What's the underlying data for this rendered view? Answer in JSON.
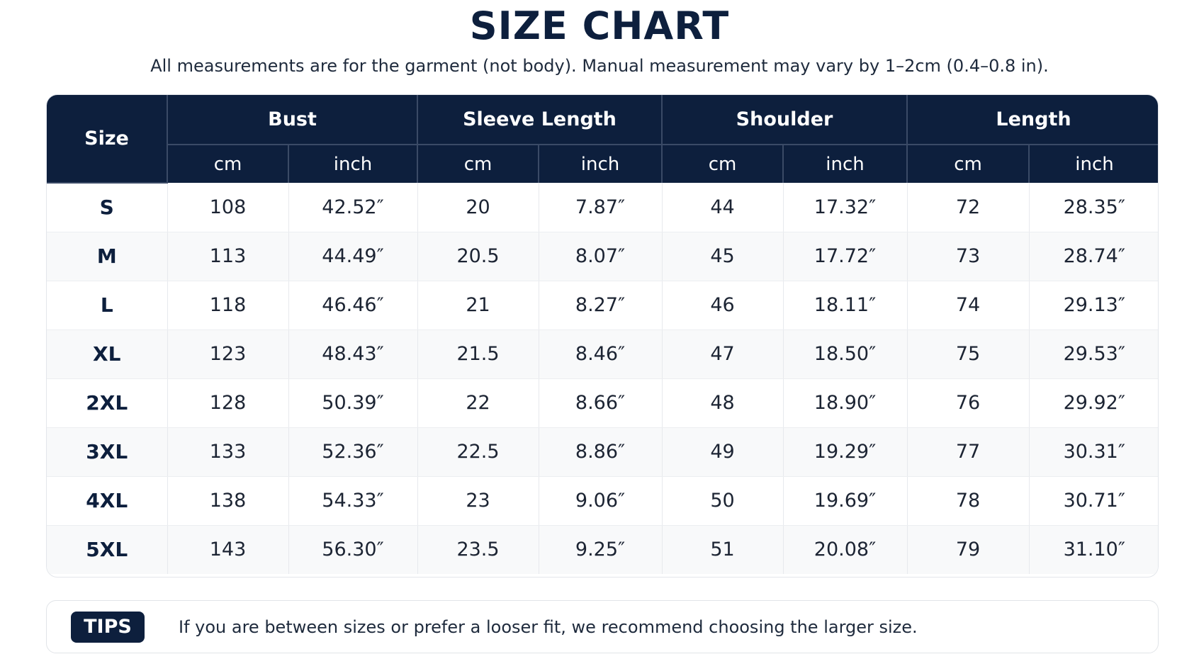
{
  "title": "SIZE CHART",
  "subtitle": "All measurements are for the garment (not body). Manual measurement may vary by 1–2cm (0.4–0.8 in).",
  "table": {
    "size_header": "Size",
    "groups": [
      "Bust",
      "Sleeve Length",
      "Shoulder",
      "Length"
    ],
    "unit_cm": "cm",
    "unit_inch": "inch",
    "rows": [
      {
        "size": "S",
        "cells": [
          "108",
          "42.52″",
          "20",
          "7.87″",
          "44",
          "17.32″",
          "72",
          "28.35″"
        ]
      },
      {
        "size": "M",
        "cells": [
          "113",
          "44.49″",
          "20.5",
          "8.07″",
          "45",
          "17.72″",
          "73",
          "28.74″"
        ]
      },
      {
        "size": "L",
        "cells": [
          "118",
          "46.46″",
          "21",
          "8.27″",
          "46",
          "18.11″",
          "74",
          "29.13″"
        ]
      },
      {
        "size": "XL",
        "cells": [
          "123",
          "48.43″",
          "21.5",
          "8.46″",
          "47",
          "18.50″",
          "75",
          "29.53″"
        ]
      },
      {
        "size": "2XL",
        "cells": [
          "128",
          "50.39″",
          "22",
          "8.66″",
          "48",
          "18.90″",
          "76",
          "29.92″"
        ]
      },
      {
        "size": "3XL",
        "cells": [
          "133",
          "52.36″",
          "22.5",
          "8.86″",
          "49",
          "19.29″",
          "77",
          "30.31″"
        ]
      },
      {
        "size": "4XL",
        "cells": [
          "138",
          "54.33″",
          "23",
          "9.06″",
          "50",
          "19.69″",
          "78",
          "30.71″"
        ]
      },
      {
        "size": "5XL",
        "cells": [
          "143",
          "56.30″",
          "23.5",
          "9.25″",
          "51",
          "20.08″",
          "79",
          "31.10″"
        ]
      }
    ]
  },
  "tips": {
    "badge": "TIPS",
    "text": "If you are between sizes or prefer a looser fit, we recommend choosing the larger size."
  },
  "colors": {
    "header_bg": "#0d1f3d",
    "header_text": "#ffffff",
    "stripe_bg": "#f8f9fa"
  }
}
